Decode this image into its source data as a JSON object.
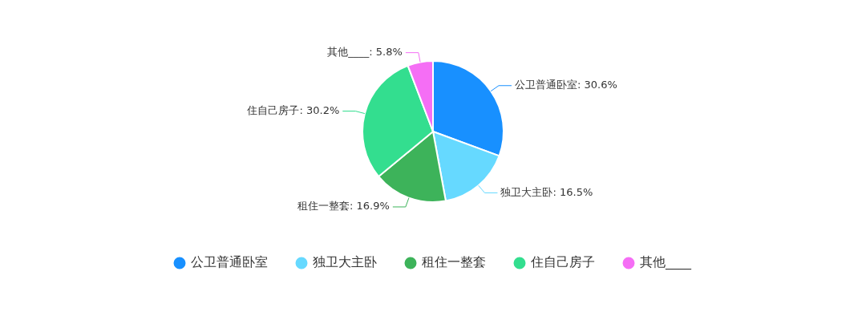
{
  "chart_data": {
    "type": "pie",
    "categories": [
      "公卫普通卧室",
      "独卫大主卧",
      "租住一整套",
      "住自己房子",
      "其他____"
    ],
    "values": [
      30.6,
      16.5,
      16.9,
      30.2,
      5.8
    ],
    "colors": [
      "#1890ff",
      "#66d9ff",
      "#3db35a",
      "#33de8f",
      "#f56ef5"
    ],
    "value_labels": [
      "公卫普通卧室: 30.6%",
      "独卫大主卧: 16.5%",
      "租住一整套: 16.9%",
      "住自己房子: 30.2%",
      "其他____: 5.8%"
    ],
    "legend": "bottom"
  }
}
